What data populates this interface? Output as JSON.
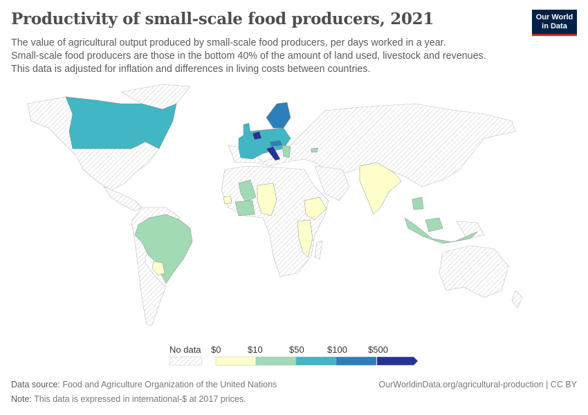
{
  "header": {
    "title": "Productivity of small-scale food producers, 2021",
    "subtitle_lines": [
      "The value of agricultural output produced by small-scale food producers, per days worked in a year.",
      "Small-scale food producers are those in the bottom 40% of the amount of land used, livestock and revenues.",
      "This data is adjusted for inflation and differences in living costs between countries."
    ],
    "logo": [
      "Our World",
      "in Data"
    ]
  },
  "legend": {
    "no_data_label": "No data",
    "ticks": [
      "$0",
      "$10",
      "$50",
      "$100",
      "$500"
    ],
    "bins": [
      {
        "range": "$0–$10",
        "color": "#ffffcc"
      },
      {
        "range": "$10–$50",
        "color": "#a1dab4"
      },
      {
        "range": "$50–$100",
        "color": "#41b6c4"
      },
      {
        "range": "$100–$500",
        "color": "#2c7fb8"
      },
      {
        "range": "> $500",
        "color": "#253494"
      }
    ],
    "no_data_color": "#e6e6e6"
  },
  "chart_data": {
    "type": "choropleth",
    "title": "Productivity of small-scale food producers, 2021",
    "regions_by_bin": {
      "$0–$10": [
        "India",
        "Ethiopia",
        "Tanzania",
        "Malawi",
        "Niger",
        "Nigeria",
        "Burkina Faso",
        "Sierra Leone",
        "Paraguay",
        "Bangladesh"
      ],
      "$10–$50": [
        "Brazil",
        "Mali",
        "Ghana",
        "Côte d'Ivoire",
        "Indonesia",
        "Malaysia",
        "Vietnam",
        "Georgia",
        "Greece",
        "Bulgaria"
      ],
      "$50–$100": [
        "Canada",
        "France",
        "Spain",
        "Germany",
        "Poland",
        "United Kingdom"
      ],
      "$100–$500": [
        "Sweden",
        "Finland",
        "Norway",
        "Austria"
      ],
      "> $500": [
        "Netherlands",
        "Italy",
        "Belgium"
      ]
    }
  },
  "footer": {
    "source_label": "Data source:",
    "source": "Food and Agriculture Organization of the United Nations",
    "note_label": "Note:",
    "note": "This data is expressed in international-$ at 2017 prices.",
    "url": "OurWorldinData.org/agricultural-production | CC BY"
  }
}
